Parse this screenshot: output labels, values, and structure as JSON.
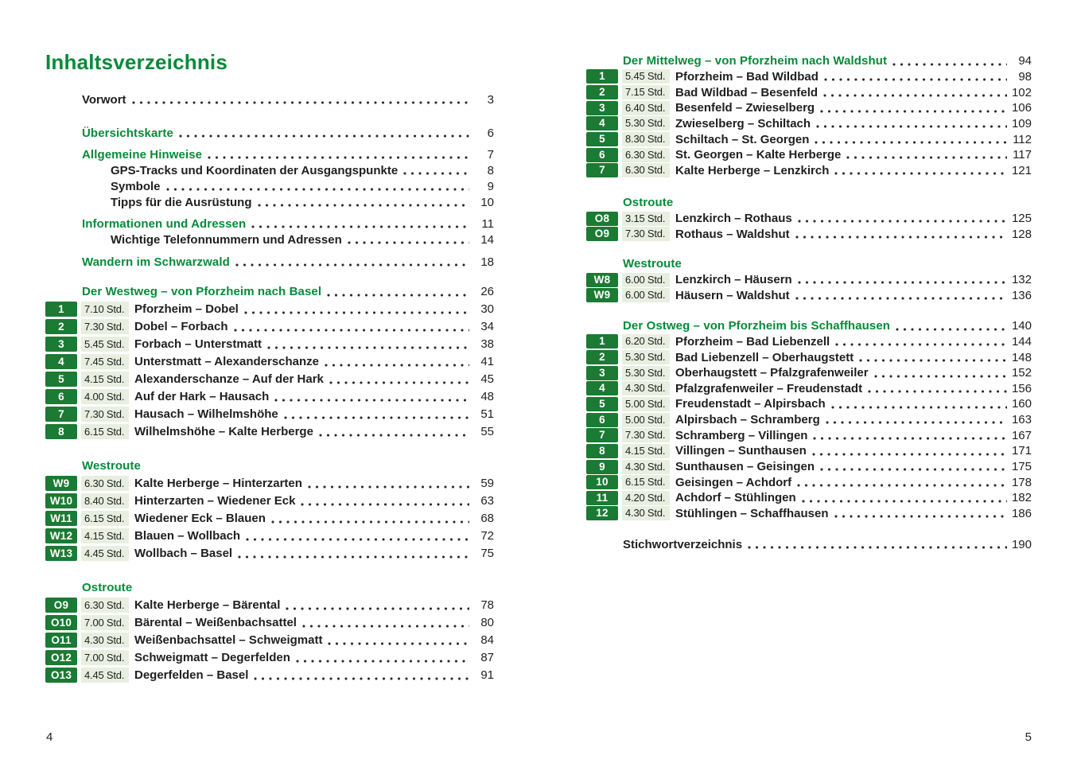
{
  "colors": {
    "heading_green": "#078a3a",
    "badge_green": "#1b7a33",
    "time_chip_bg": "#e9efe0",
    "text": "#1f1f1f",
    "dot": "#2b2b2b",
    "paper": "#ffffff"
  },
  "page_left": {
    "title": "Inhaltsverzeichnis",
    "folio": "4",
    "sections": [
      {
        "rows": [
          {
            "kind": "entry",
            "label": "Vorwort",
            "page": "3"
          }
        ]
      },
      {
        "rows": [
          {
            "kind": "entry-green",
            "label": "Übersichtskarte",
            "page": "6"
          }
        ]
      },
      {
        "rows": [
          {
            "kind": "entry-green",
            "label": "Allgemeine Hinweise",
            "page": "7"
          },
          {
            "kind": "entry-sub",
            "label": "GPS-Tracks und Koordinaten der Ausgangspunkte",
            "page": "8"
          },
          {
            "kind": "entry-sub",
            "label": "Symbole",
            "page": "9"
          },
          {
            "kind": "entry-sub",
            "label": "Tipps für die Ausrüstung",
            "page": "10"
          }
        ]
      },
      {
        "rows": [
          {
            "kind": "entry-green",
            "label": "Informationen und Adressen",
            "page": "11"
          },
          {
            "kind": "entry-sub",
            "label": "Wichtige Telefonnummern und Adressen",
            "page": "14"
          }
        ]
      },
      {
        "rows": [
          {
            "kind": "entry-green",
            "label": "Wandern im Schwarzwald",
            "page": "18"
          }
        ]
      },
      {
        "rows": [
          {
            "kind": "heading",
            "label": "Der Westweg – von Pforzheim nach Basel",
            "page": "26"
          },
          {
            "kind": "stage",
            "badge": "1",
            "time": "7.10 Std.",
            "label": "Pforzheim – Dobel",
            "page": "30"
          },
          {
            "kind": "stage",
            "badge": "2",
            "time": "7.30 Std.",
            "label": "Dobel – Forbach",
            "page": "34"
          },
          {
            "kind": "stage",
            "badge": "3",
            "time": "5.45 Std.",
            "label": "Forbach – Unterstmatt",
            "page": "38"
          },
          {
            "kind": "stage",
            "badge": "4",
            "time": "7.45 Std.",
            "label": "Unterstmatt – Alexanderschanze",
            "page": "41"
          },
          {
            "kind": "stage",
            "badge": "5",
            "time": "4.15 Std.",
            "label": "Alexanderschanze – Auf der Hark",
            "page": "45"
          },
          {
            "kind": "stage",
            "badge": "6",
            "time": "4.00 Std.",
            "label": "Auf der Hark – Hausach",
            "page": "48"
          },
          {
            "kind": "stage",
            "badge": "7",
            "time": "7.30 Std.",
            "label": "Hausach – Wilhelmshöhe",
            "page": "51"
          },
          {
            "kind": "stage",
            "badge": "8",
            "time": "6.15 Std.",
            "label": "Wilhelmshöhe – Kalte Herberge",
            "page": "55"
          }
        ]
      },
      {
        "rows": [
          {
            "kind": "subheading",
            "label": "Westroute"
          },
          {
            "kind": "stage",
            "badge": "W9",
            "time": "6.30 Std.",
            "label": "Kalte Herberge – Hinterzarten",
            "page": "59"
          },
          {
            "kind": "stage",
            "badge": "W10",
            "time": "8.40 Std.",
            "label": "Hinterzarten – Wiedener Eck",
            "page": "63"
          },
          {
            "kind": "stage",
            "badge": "W11",
            "time": "6.15 Std.",
            "label": "Wiedener Eck – Blauen",
            "page": "68"
          },
          {
            "kind": "stage",
            "badge": "W12",
            "time": "4.15 Std.",
            "label": "Blauen – Wollbach",
            "page": "72"
          },
          {
            "kind": "stage",
            "badge": "W13",
            "time": "4.45 Std.",
            "label": "Wollbach – Basel",
            "page": "75"
          }
        ]
      },
      {
        "rows": [
          {
            "kind": "subheading",
            "label": "Ostroute"
          },
          {
            "kind": "stage",
            "badge": "O9",
            "time": "6.30 Std.",
            "label": "Kalte Herberge – Bärental",
            "page": "78"
          },
          {
            "kind": "stage",
            "badge": "O10",
            "time": "7.00 Std.",
            "label": "Bärental – Weißenbachsattel",
            "page": "80"
          },
          {
            "kind": "stage",
            "badge": "O11",
            "time": "4.30 Std.",
            "label": "Weißenbachsattel – Schweigmatt",
            "page": "84"
          },
          {
            "kind": "stage",
            "badge": "O12",
            "time": "7.00 Std.",
            "label": "Schweigmatt – Degerfelden",
            "page": "87"
          },
          {
            "kind": "stage",
            "badge": "O13",
            "time": "4.45 Std.",
            "label": "Degerfelden – Basel",
            "page": "91"
          }
        ]
      }
    ]
  },
  "page_right": {
    "folio": "5",
    "sections": [
      {
        "rows": [
          {
            "kind": "heading",
            "label": "Der Mittelweg – von Pforzheim nach Waldshut",
            "page": "94"
          },
          {
            "kind": "stage",
            "badge": "1",
            "time": "5.45 Std.",
            "label": "Pforzheim – Bad Wildbad",
            "page": "98"
          },
          {
            "kind": "stage",
            "badge": "2",
            "time": "7.15 Std.",
            "label": "Bad Wildbad – Besenfeld",
            "page": "102"
          },
          {
            "kind": "stage",
            "badge": "3",
            "time": "6.40 Std.",
            "label": "Besenfeld – Zwieselberg",
            "page": "106"
          },
          {
            "kind": "stage",
            "badge": "4",
            "time": "5.30 Std.",
            "label": "Zwieselberg – Schiltach",
            "page": "109"
          },
          {
            "kind": "stage",
            "badge": "5",
            "time": "8.30 Std.",
            "label": "Schiltach – St. Georgen",
            "page": "112"
          },
          {
            "kind": "stage",
            "badge": "6",
            "time": "6.30 Std.",
            "label": "St. Georgen – Kalte Herberge",
            "page": "117"
          },
          {
            "kind": "stage",
            "badge": "7",
            "time": "6.30 Std.",
            "label": "Kalte Herberge – Lenzkirch",
            "page": "121"
          }
        ]
      },
      {
        "rows": [
          {
            "kind": "subheading",
            "label": "Ostroute"
          },
          {
            "kind": "stage",
            "badge": "O8",
            "time": "3.15 Std.",
            "label": "Lenzkirch – Rothaus",
            "page": "125"
          },
          {
            "kind": "stage",
            "badge": "O9",
            "time": "7.30 Std.",
            "label": "Rothaus – Waldshut",
            "page": "128"
          }
        ]
      },
      {
        "rows": [
          {
            "kind": "subheading",
            "label": "Westroute"
          },
          {
            "kind": "stage",
            "badge": "W8",
            "time": "6.00 Std.",
            "label": "Lenzkirch – Häusern",
            "page": "132"
          },
          {
            "kind": "stage",
            "badge": "W9",
            "time": "6.00 Std.",
            "label": "Häusern – Waldshut",
            "page": "136"
          }
        ]
      },
      {
        "rows": [
          {
            "kind": "heading",
            "label": "Der Ostweg – von Pforzheim bis Schaffhausen",
            "page": "140"
          },
          {
            "kind": "stage",
            "badge": "1",
            "time": "6.20 Std.",
            "label": "Pforzheim – Bad Liebenzell",
            "page": "144"
          },
          {
            "kind": "stage",
            "badge": "2",
            "time": "5.30 Std.",
            "label": "Bad Liebenzell – Oberhaugstett",
            "page": "148"
          },
          {
            "kind": "stage",
            "badge": "3",
            "time": "5.30 Std.",
            "label": "Oberhaugstett – Pfalzgrafenweiler",
            "page": "152"
          },
          {
            "kind": "stage",
            "badge": "4",
            "time": "4.30 Std.",
            "label": "Pfalzgrafenweiler – Freudenstadt",
            "page": "156"
          },
          {
            "kind": "stage",
            "badge": "5",
            "time": "5.00 Std.",
            "label": "Freudenstadt – Alpirsbach",
            "page": "160"
          },
          {
            "kind": "stage",
            "badge": "6",
            "time": "5.00 Std.",
            "label": "Alpirsbach – Schramberg",
            "page": "163"
          },
          {
            "kind": "stage",
            "badge": "7",
            "time": "7.30 Std.",
            "label": "Schramberg – Villingen",
            "page": "167"
          },
          {
            "kind": "stage",
            "badge": "8",
            "time": "4.15 Std.",
            "label": "Villingen – Sunthausen",
            "page": "171"
          },
          {
            "kind": "stage",
            "badge": "9",
            "time": "4.30 Std.",
            "label": "Sunthausen – Geisingen",
            "page": "175"
          },
          {
            "kind": "stage",
            "badge": "10",
            "time": "6.15 Std.",
            "label": "Geisingen – Achdorf",
            "page": "178"
          },
          {
            "kind": "stage",
            "badge": "11",
            "time": "4.20 Std.",
            "label": "Achdorf – Stühlingen",
            "page": "182"
          },
          {
            "kind": "stage",
            "badge": "12",
            "time": "4.30 Std.",
            "label": "Stühlingen – Schaffhausen",
            "page": "186"
          }
        ]
      },
      {
        "rows": [
          {
            "kind": "entry",
            "label": "Stichwortverzeichnis",
            "page": "190"
          }
        ]
      }
    ]
  }
}
